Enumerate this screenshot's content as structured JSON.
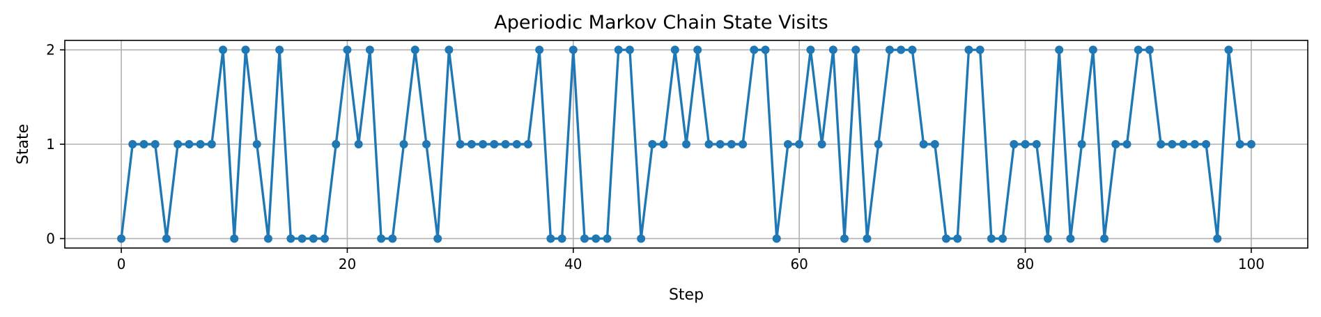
{
  "chart_data": {
    "type": "line",
    "title": "Aperiodic Markov Chain State Visits",
    "xlabel": "Step",
    "ylabel": "State",
    "xlim": [
      -5,
      105
    ],
    "ylim": [
      -0.1,
      2.1
    ],
    "xticks": [
      0,
      20,
      40,
      60,
      80,
      100
    ],
    "yticks": [
      0,
      1,
      2
    ],
    "grid": true,
    "legend": "none",
    "series": [
      {
        "name": "state",
        "color": "#1f77b4",
        "marker": "circle",
        "x": [
          0,
          1,
          2,
          3,
          4,
          5,
          6,
          7,
          8,
          9,
          10,
          11,
          12,
          13,
          14,
          15,
          16,
          17,
          18,
          19,
          20,
          21,
          22,
          23,
          24,
          25,
          26,
          27,
          28,
          29,
          30,
          31,
          32,
          33,
          34,
          35,
          36,
          37,
          38,
          39,
          40,
          41,
          42,
          43,
          44,
          45,
          46,
          47,
          48,
          49,
          50,
          51,
          52,
          53,
          54,
          55,
          56,
          57,
          58,
          59,
          60,
          61,
          62,
          63,
          64,
          65,
          66,
          67,
          68,
          69,
          70,
          71,
          72,
          73,
          74,
          75,
          76,
          77,
          78,
          79,
          80,
          81,
          82,
          83,
          84,
          85,
          86,
          87,
          88,
          89,
          90,
          91,
          92,
          93,
          94,
          95,
          96,
          97,
          98,
          99,
          100
        ],
        "values": [
          0,
          1,
          1,
          1,
          0,
          1,
          1,
          1,
          1,
          2,
          0,
          2,
          1,
          0,
          2,
          0,
          0,
          0,
          0,
          1,
          2,
          1,
          2,
          0,
          0,
          1,
          2,
          1,
          0,
          2,
          1,
          1,
          1,
          1,
          1,
          1,
          1,
          2,
          0,
          0,
          2,
          0,
          0,
          0,
          2,
          2,
          0,
          1,
          1,
          2,
          1,
          2,
          1,
          1,
          1,
          1,
          2,
          2,
          0,
          1,
          1,
          2,
          1,
          2,
          0,
          2,
          0,
          1,
          2,
          2,
          2,
          1,
          1,
          0,
          0,
          2,
          2,
          0,
          0,
          1,
          1,
          1,
          0,
          2,
          0,
          1,
          2,
          0,
          1,
          1,
          2,
          2,
          1,
          1,
          1,
          1,
          1,
          0,
          2,
          1,
          1
        ]
      }
    ]
  }
}
